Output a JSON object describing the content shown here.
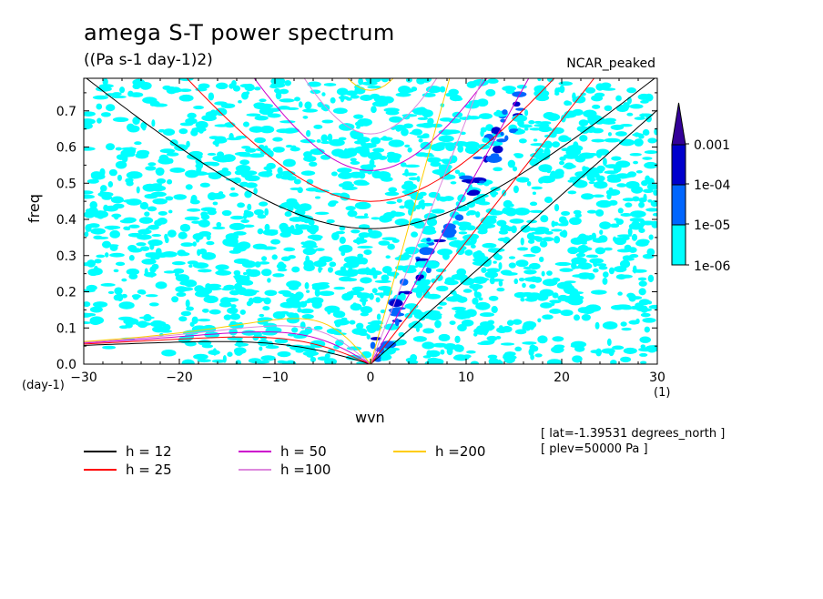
{
  "title": "amega S-T power spectrum",
  "subtitle": "((Pa s-1 day-1)2)",
  "model_label": "NCAR_peaked",
  "x_unit_left": "(day-1)",
  "x_unit_right": "(1)",
  "info_lat": "[ lat=-1.39531 degrees_north ]",
  "info_plev": "[ plev=50000 Pa ]",
  "colors": {
    "band_1e06": "#00ffff",
    "band_1e05": "#0066ff",
    "band_1e04": "#0000cc",
    "band_0001": "#330099",
    "h12": "#000000",
    "h25": "#ff0000",
    "h50": "#cc00cc",
    "h100": "#dd88dd",
    "h200": "#ffcc00"
  },
  "chart_data": {
    "type": "heatmap",
    "xlabel": "wvn",
    "ylabel": "freq",
    "xlim": [
      -30,
      30
    ],
    "ylim": [
      0,
      0.79
    ],
    "xticks": [
      -30,
      -20,
      -10,
      0,
      10,
      20,
      30
    ],
    "yticks": [
      0.0,
      0.1,
      0.2,
      0.3,
      0.4,
      0.5,
      0.6,
      0.7
    ],
    "colorbar": {
      "levels": [
        "1e-06",
        "1e-05",
        "1e-04",
        "0.001"
      ],
      "colors": [
        "#00ffff",
        "#0066ff",
        "#0000cc",
        "#330099"
      ],
      "extend": "max"
    },
    "dispersion_curves": [
      {
        "name": "h = 12",
        "color": "#000000",
        "equivalent_depth_m": 12
      },
      {
        "name": "h = 25",
        "color": "#ff0000",
        "equivalent_depth_m": 25
      },
      {
        "name": "h = 50",
        "color": "#cc00cc",
        "equivalent_depth_m": 50
      },
      {
        "name": "h =100",
        "color": "#dd88dd",
        "equivalent_depth_m": 100
      },
      {
        "name": "h =200",
        "color": "#ffcc00",
        "equivalent_depth_m": 200
      }
    ]
  }
}
